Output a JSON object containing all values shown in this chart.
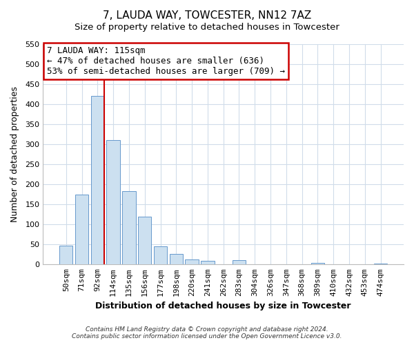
{
  "title": "7, LAUDA WAY, TOWCESTER, NN12 7AZ",
  "subtitle": "Size of property relative to detached houses in Towcester",
  "xlabel": "Distribution of detached houses by size in Towcester",
  "ylabel": "Number of detached properties",
  "bar_labels": [
    "50sqm",
    "71sqm",
    "92sqm",
    "114sqm",
    "135sqm",
    "156sqm",
    "177sqm",
    "198sqm",
    "220sqm",
    "241sqm",
    "262sqm",
    "283sqm",
    "304sqm",
    "326sqm",
    "347sqm",
    "368sqm",
    "389sqm",
    "410sqm",
    "432sqm",
    "453sqm",
    "474sqm"
  ],
  "bar_values": [
    47,
    175,
    420,
    310,
    183,
    120,
    45,
    27,
    13,
    10,
    0,
    11,
    0,
    0,
    0,
    0,
    4,
    0,
    0,
    0,
    3
  ],
  "bar_color": "#cce0f0",
  "bar_edge_color": "#6699cc",
  "vline_color": "#cc0000",
  "vline_bar_index": 2,
  "annotation_title": "7 LAUDA WAY: 115sqm",
  "annotation_line1": "← 47% of detached houses are smaller (636)",
  "annotation_line2": "53% of semi-detached houses are larger (709) →",
  "annotation_box_color": "#ffffff",
  "annotation_box_edge": "#cc0000",
  "ylim": [
    0,
    550
  ],
  "yticks": [
    0,
    50,
    100,
    150,
    200,
    250,
    300,
    350,
    400,
    450,
    500,
    550
  ],
  "footnote1": "Contains HM Land Registry data © Crown copyright and database right 2024.",
  "footnote2": "Contains public sector information licensed under the Open Government Licence v3.0.",
  "bg_color": "#ffffff",
  "plot_bg_color": "#ffffff",
  "grid_color": "#d0dcea",
  "title_fontsize": 11,
  "subtitle_fontsize": 9.5,
  "xlabel_fontsize": 9,
  "ylabel_fontsize": 9,
  "tick_fontsize": 8,
  "annotation_fontsize": 9
}
